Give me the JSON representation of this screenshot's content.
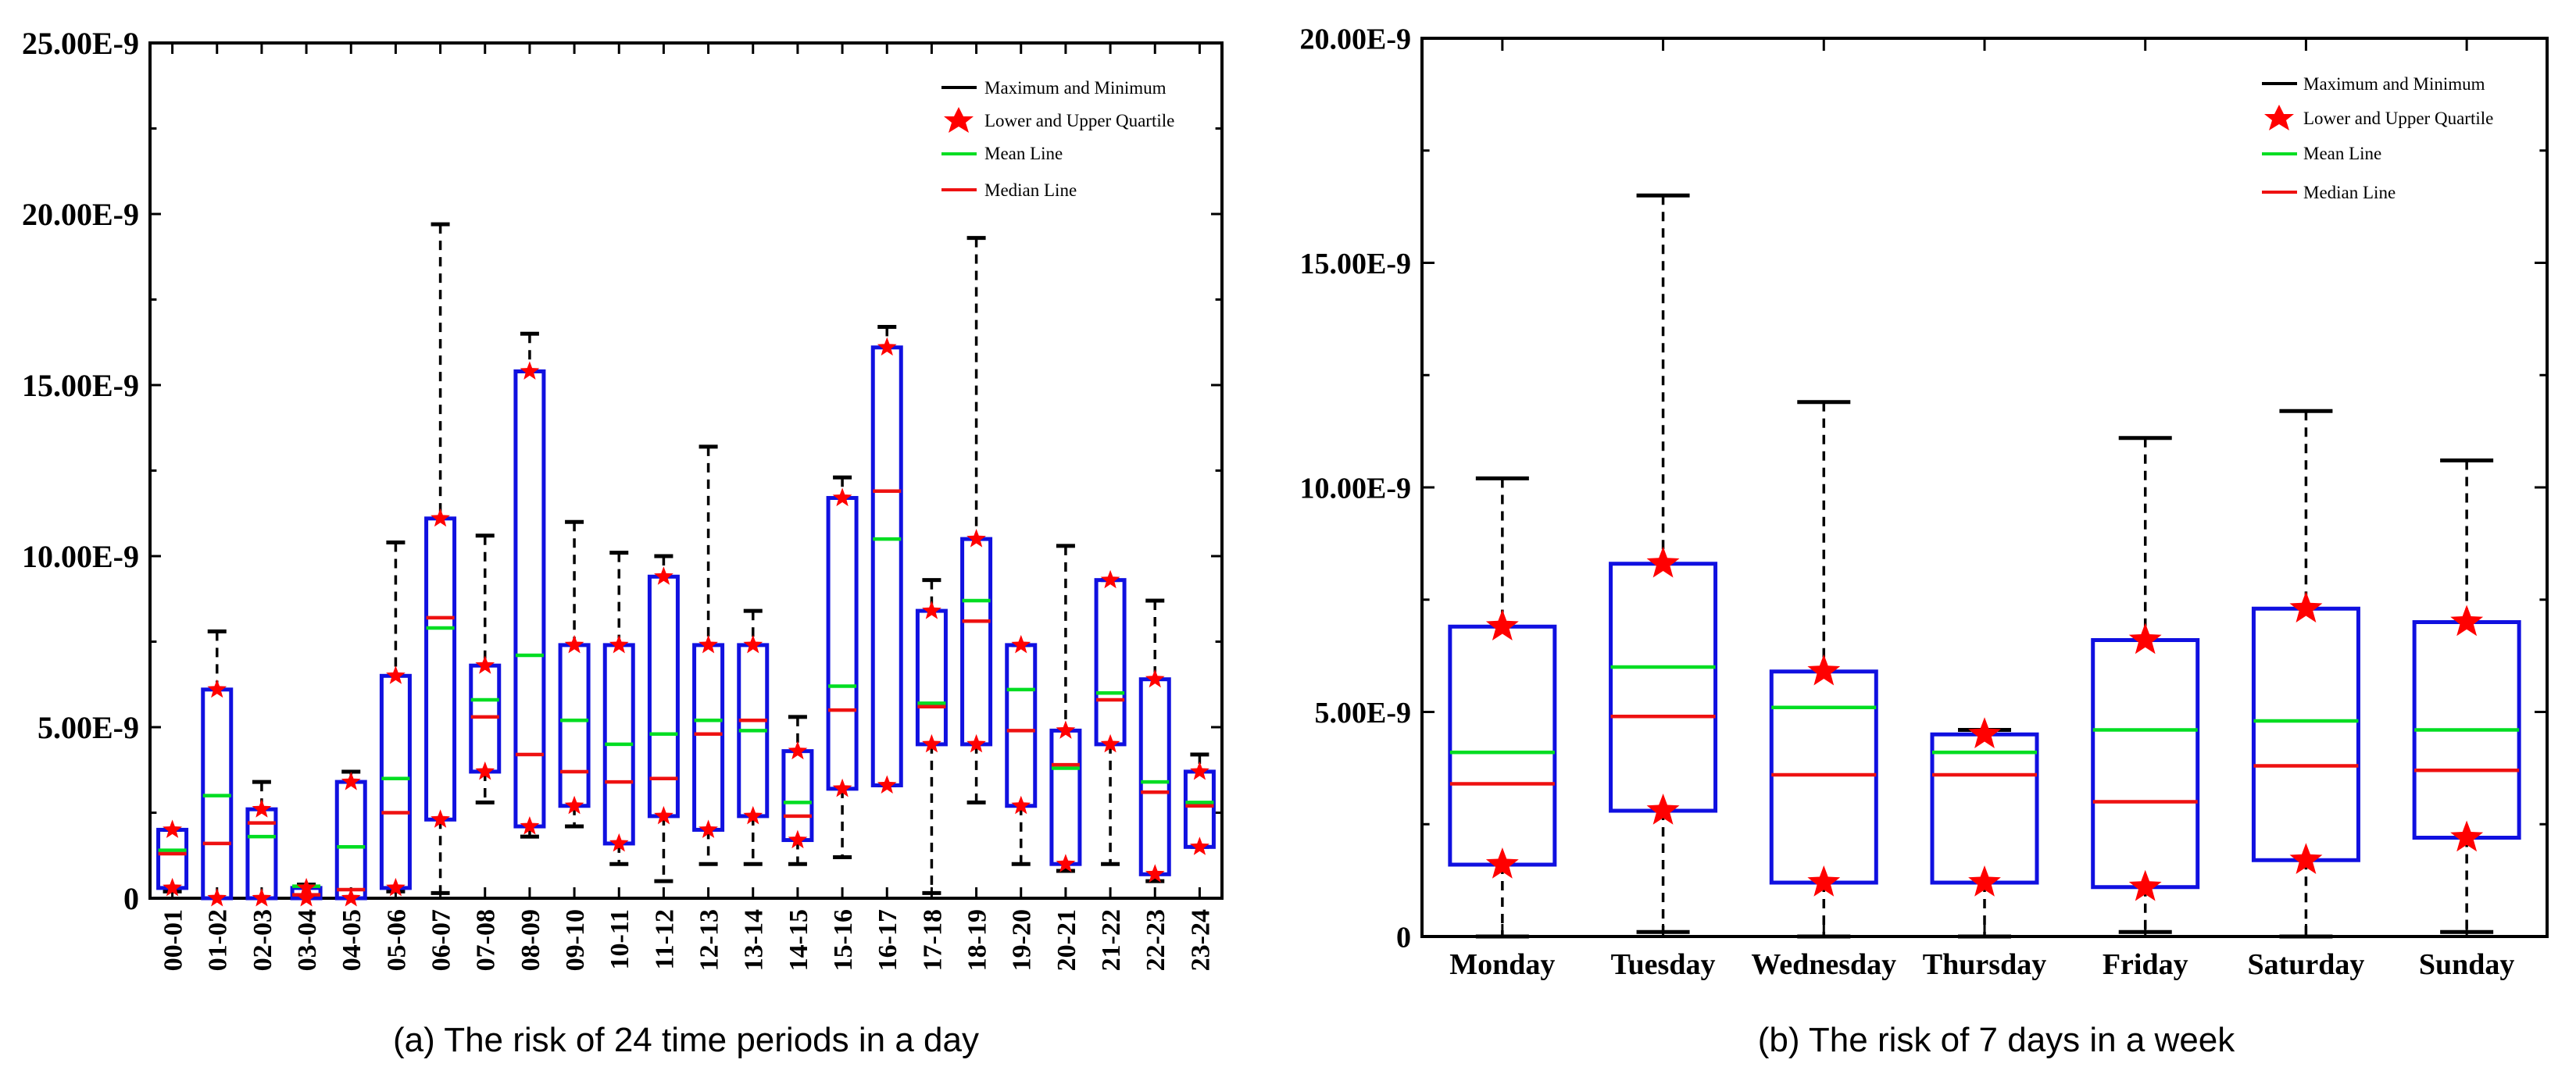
{
  "legend": {
    "max_min": "Maximum and Minimum",
    "quartile": "Lower and Upper Quartile",
    "mean": "Mean Line",
    "median": "Median Line"
  },
  "colors": {
    "box": "#1010e0",
    "mean": "#00dd22",
    "median": "#ee1111",
    "star": "#ff0000",
    "whisker": "#000000"
  },
  "chart_data": [
    {
      "type": "box",
      "title": "(a) The risk of 24 time periods in a day",
      "xlabel": "",
      "ylabel": "",
      "ylim": [
        0,
        25.0
      ],
      "yunit": "E-9",
      "yticks": [
        0,
        5,
        10,
        15,
        20,
        25
      ],
      "ytick_labels": [
        "0",
        "5.00E-9",
        "10.00E-9",
        "15.00E-9",
        "20.00E-9",
        "25.00E-9"
      ],
      "categories": [
        "00-01",
        "01-02",
        "02-03",
        "03-04",
        "04-05",
        "05-06",
        "06-07",
        "07-08",
        "08-09",
        "09-10",
        "10-11",
        "11-12",
        "12-13",
        "13-14",
        "14-15",
        "15-16",
        "16-17",
        "17-18",
        "18-19",
        "19-20",
        "20-21",
        "21-22",
        "22-23",
        "23-24"
      ],
      "min": [
        0.2,
        0.0,
        0.0,
        0.0,
        0.0,
        0.2,
        0.15,
        2.8,
        1.8,
        2.1,
        1.0,
        0.5,
        1.0,
        1.0,
        1.0,
        1.2,
        3.3,
        0.15,
        2.8,
        1.0,
        0.8,
        1.0,
        0.5,
        1.5
      ],
      "q1": [
        0.3,
        0.0,
        0.0,
        0.0,
        0.0,
        0.3,
        2.3,
        3.7,
        2.1,
        2.7,
        1.6,
        2.4,
        2.0,
        2.4,
        1.7,
        3.2,
        3.3,
        4.5,
        4.5,
        2.7,
        1.0,
        4.5,
        0.7,
        1.5
      ],
      "median": [
        1.3,
        1.6,
        2.2,
        0.1,
        0.25,
        2.5,
        8.2,
        5.3,
        4.2,
        3.7,
        3.4,
        3.5,
        4.8,
        5.2,
        2.4,
        5.5,
        11.9,
        5.6,
        8.1,
        4.9,
        3.9,
        5.8,
        3.1,
        2.7
      ],
      "mean": [
        1.4,
        3.0,
        1.8,
        0.35,
        1.5,
        3.5,
        7.9,
        5.8,
        7.1,
        5.2,
        4.5,
        4.8,
        5.2,
        4.9,
        2.8,
        6.2,
        10.5,
        5.7,
        8.7,
        6.1,
        3.8,
        6.0,
        3.4,
        2.8
      ],
      "q3": [
        2.0,
        6.1,
        2.6,
        0.3,
        3.4,
        6.5,
        11.1,
        6.8,
        15.4,
        7.4,
        7.4,
        9.4,
        7.4,
        7.4,
        4.3,
        11.7,
        16.1,
        8.4,
        10.5,
        7.4,
        4.9,
        9.3,
        6.4,
        3.7
      ],
      "max": [
        2.0,
        7.8,
        3.4,
        0.4,
        3.7,
        10.4,
        19.7,
        10.6,
        16.5,
        11.0,
        10.1,
        10.0,
        13.2,
        8.4,
        5.3,
        12.3,
        16.7,
        9.3,
        19.3,
        7.4,
        10.3,
        9.3,
        8.7,
        4.2
      ]
    },
    {
      "type": "box",
      "title": "(b) The risk of 7 days in a week",
      "xlabel": "",
      "ylabel": "",
      "ylim": [
        0,
        20.0
      ],
      "yunit": "E-9",
      "yticks": [
        0,
        5,
        10,
        15,
        20
      ],
      "ytick_labels": [
        "0",
        "5.00E-9",
        "10.00E-9",
        "15.00E-9",
        "20.00E-9"
      ],
      "categories": [
        "Monday",
        "Tuesday",
        "Wednesday",
        "Thursday",
        "Friday",
        "Saturday",
        "Sunday"
      ],
      "min": [
        0.0,
        0.1,
        0.0,
        0.0,
        0.1,
        0.0,
        0.1
      ],
      "q1": [
        1.6,
        2.8,
        1.2,
        1.2,
        1.1,
        1.7,
        2.2
      ],
      "median": [
        3.4,
        4.9,
        3.6,
        3.6,
        3.0,
        3.8,
        3.7
      ],
      "mean": [
        4.1,
        6.0,
        5.1,
        4.1,
        4.6,
        4.8,
        4.6
      ],
      "q3": [
        6.9,
        8.3,
        5.9,
        4.5,
        6.6,
        7.3,
        7.0
      ],
      "max": [
        10.2,
        16.5,
        11.9,
        4.6,
        11.1,
        11.7,
        10.6
      ]
    }
  ]
}
